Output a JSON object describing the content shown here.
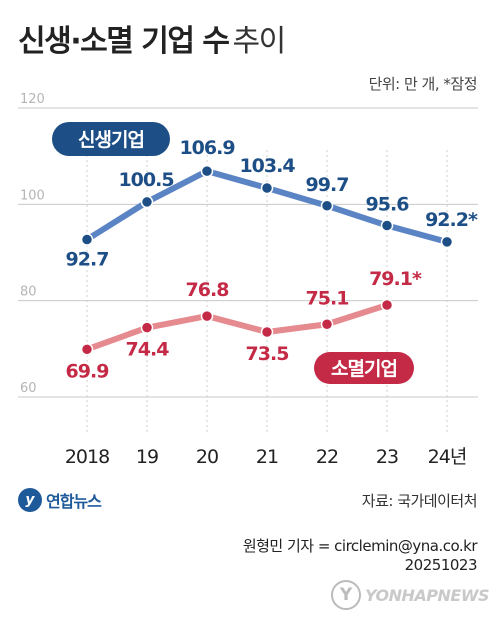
{
  "title": {
    "bold": "신생·소멸 기업 수",
    "light": "추이"
  },
  "unit_note": "단위: 만 개, *잠정",
  "source": "자료: 국가데이터처",
  "credit": {
    "line1": "원형민 기자 = circlemin@yna.co.kr",
    "line2": "20251023"
  },
  "logo_label": "연합뉴스",
  "agency_label": "YONHAPNEWS",
  "icons": {
    "logo": "yonhap-logo-icon",
    "agency": "yonhap-agency-logo-icon"
  },
  "chart_data": {
    "type": "line",
    "categories": [
      "2018",
      "19",
      "20",
      "21",
      "22",
      "23",
      "24년"
    ],
    "ylim": [
      60,
      120
    ],
    "yticks": [
      "60",
      "80",
      "100",
      "120"
    ],
    "grid": true,
    "series": [
      {
        "name": "신생기업",
        "color": "#5b84c4",
        "badge_color": "#1d4f86",
        "label_color": "#1d4f86",
        "values": [
          92.7,
          100.5,
          106.9,
          103.4,
          99.7,
          95.6,
          92.2
        ],
        "labels": [
          "92.7",
          "100.5",
          "106.9",
          "103.4",
          "99.7",
          "95.6",
          "92.2*"
        ]
      },
      {
        "name": "소멸기업",
        "color": "#e58a8f",
        "badge_color": "#c42a46",
        "label_color": "#c42a46",
        "values": [
          69.9,
          74.4,
          76.8,
          73.5,
          75.1,
          79.1,
          null
        ],
        "labels": [
          "69.9",
          "74.4",
          "76.8",
          "73.5",
          "75.1",
          "79.1*",
          null
        ]
      }
    ]
  }
}
